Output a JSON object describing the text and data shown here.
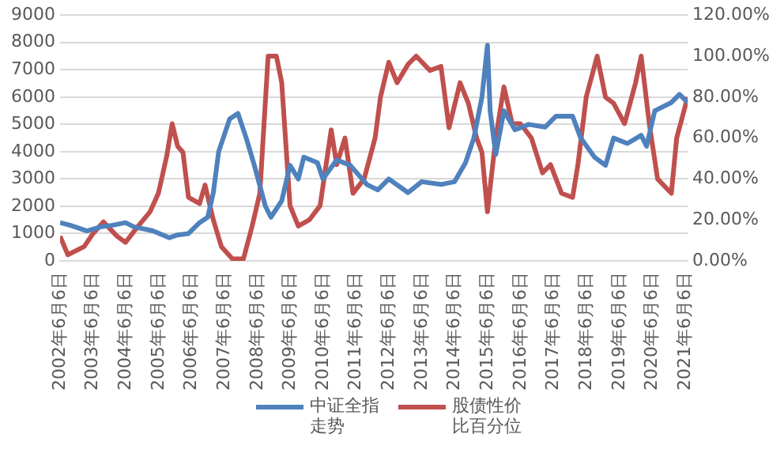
{
  "chart_data": {
    "type": "line",
    "legend": "bottom",
    "grid": "y",
    "marker": "none",
    "line_style": "solid",
    "xlim": [
      "2002-06-06",
      "2021-07-01"
    ],
    "xticks": [
      {
        "value": "2002-06-06",
        "label": "2002年6月6日"
      },
      {
        "value": "2003-06-06",
        "label": "2003年6月6日"
      },
      {
        "value": "2004-06-06",
        "label": "2004年6月6日"
      },
      {
        "value": "2005-06-06",
        "label": "2005年6月6日"
      },
      {
        "value": "2006-06-06",
        "label": "2006年6月6日"
      },
      {
        "value": "2007-06-06",
        "label": "2007年6月6日"
      },
      {
        "value": "2008-06-06",
        "label": "2008年6月6日"
      },
      {
        "value": "2009-06-06",
        "label": "2009年6月6日"
      },
      {
        "value": "2010-06-06",
        "label": "2010年6月6日"
      },
      {
        "value": "2011-06-06",
        "label": "2011年6月6日"
      },
      {
        "value": "2012-06-06",
        "label": "2012年6月6日"
      },
      {
        "value": "2013-06-06",
        "label": "2013年6月6日"
      },
      {
        "value": "2014-06-06",
        "label": "2014年6月6日"
      },
      {
        "value": "2015-06-06",
        "label": "2015年6月6日"
      },
      {
        "value": "2016-06-06",
        "label": "2016年6月6日"
      },
      {
        "value": "2017-06-06",
        "label": "2017年6月6日"
      },
      {
        "value": "2018-06-06",
        "label": "2018年6月6日"
      },
      {
        "value": "2019-06-06",
        "label": "2019年6月6日"
      },
      {
        "value": "2020-06-06",
        "label": "2020年6月6日"
      },
      {
        "value": "2021-06-06",
        "label": "2021年6月6日"
      }
    ],
    "ylim": [
      0,
      9000
    ],
    "yticks": [
      0,
      1000,
      2000,
      3000,
      4000,
      5000,
      6000,
      7000,
      8000,
      9000
    ],
    "y2lim": [
      0,
      120
    ],
    "y2ticks": [
      {
        "value": 0,
        "label": "0.00%"
      },
      {
        "value": 20,
        "label": "20.00%"
      },
      {
        "value": 40,
        "label": "40.00%"
      },
      {
        "value": 60,
        "label": "60.00%"
      },
      {
        "value": 80,
        "label": "80.00%"
      },
      {
        "value": 100,
        "label": "100.00%"
      },
      {
        "value": 120,
        "label": "120.00%"
      }
    ],
    "series": [
      {
        "name": "中证全指走势",
        "color": "#4f81bd",
        "x": [
          "2002-06-06",
          "2002-10",
          "2003-04",
          "2003-09",
          "2004-01",
          "2004-06",
          "2004-09",
          "2005-04",
          "2005-10",
          "2006-01",
          "2006-05",
          "2006-09",
          "2006-12",
          "2007-02",
          "2007-04",
          "2007-08",
          "2007-11",
          "2008-02",
          "2008-05",
          "2008-09",
          "2008-11",
          "2009-03",
          "2009-06",
          "2009-09",
          "2009-11",
          "2010-04",
          "2010-06",
          "2010-11",
          "2011-04",
          "2011-10",
          "2012-02",
          "2012-06",
          "2013-01",
          "2013-06",
          "2014-01",
          "2014-06",
          "2014-10",
          "2015-01",
          "2015-04",
          "2015-06",
          "2015-07",
          "2015-09",
          "2015-12",
          "2016-04",
          "2016-09",
          "2017-03",
          "2017-07",
          "2018-01",
          "2018-04",
          "2018-09",
          "2019-01",
          "2019-04",
          "2019-09",
          "2020-02",
          "2020-04",
          "2020-07",
          "2021-01",
          "2021-04",
          "2021-07"
        ],
        "values": [
          1400,
          1300,
          1100,
          1250,
          1300,
          1400,
          1250,
          1100,
          850,
          950,
          1000,
          1400,
          1600,
          2500,
          4000,
          5200,
          5400,
          4500,
          3500,
          2000,
          1600,
          2200,
          3500,
          3000,
          3800,
          3600,
          3000,
          3700,
          3500,
          2800,
          2600,
          3000,
          2500,
          2900,
          2800,
          2900,
          3600,
          4500,
          6000,
          7900,
          5500,
          3900,
          5500,
          4800,
          5000,
          4900,
          5300,
          5300,
          4500,
          3800,
          3500,
          4500,
          4300,
          4600,
          4200,
          5500,
          5800,
          6100,
          5800
        ]
      },
      {
        "name": "股债性价比百分位",
        "color": "#c0504d",
        "axis": "y2",
        "x": [
          "2002-06-06",
          "2002-09",
          "2003-03",
          "2003-06",
          "2003-10",
          "2004-03",
          "2004-06",
          "2004-10",
          "2005-03",
          "2005-06",
          "2005-09",
          "2005-11",
          "2006-01",
          "2006-03",
          "2006-05",
          "2006-09",
          "2006-11",
          "2007-02",
          "2007-05",
          "2007-09",
          "2008-01",
          "2008-04",
          "2008-07",
          "2008-10",
          "2009-01",
          "2009-03",
          "2009-06",
          "2009-09",
          "2010-01",
          "2010-05",
          "2010-09",
          "2010-11",
          "2011-02",
          "2011-05",
          "2011-09",
          "2012-01",
          "2012-03",
          "2012-06",
          "2012-09",
          "2013-01",
          "2013-04",
          "2013-09",
          "2014-01",
          "2014-04",
          "2014-08",
          "2014-11",
          "2015-02",
          "2015-04",
          "2015-06",
          "2015-09",
          "2015-12",
          "2016-03",
          "2016-06",
          "2016-10",
          "2017-02",
          "2017-05",
          "2017-09",
          "2018-01",
          "2018-03",
          "2018-06",
          "2018-10",
          "2019-01",
          "2019-04",
          "2019-08",
          "2019-12",
          "2020-02",
          "2020-05",
          "2020-08",
          "2021-01",
          "2021-03",
          "2021-07"
        ],
        "values": [
          12,
          3,
          7,
          13,
          19,
          12,
          9,
          16,
          24,
          33,
          51,
          67,
          56,
          53,
          31,
          28,
          37,
          20,
          7,
          1,
          1,
          16,
          33,
          100,
          100,
          87,
          27,
          17,
          20,
          27,
          64,
          47,
          60,
          33,
          40,
          60,
          80,
          97,
          87,
          96,
          100,
          93,
          95,
          65,
          87,
          77,
          60,
          53,
          24,
          60,
          85,
          67,
          67,
          60,
          43,
          47,
          33,
          31,
          47,
          80,
          100,
          80,
          77,
          67,
          87,
          100,
          67,
          40,
          33,
          60,
          80
        ]
      }
    ]
  }
}
